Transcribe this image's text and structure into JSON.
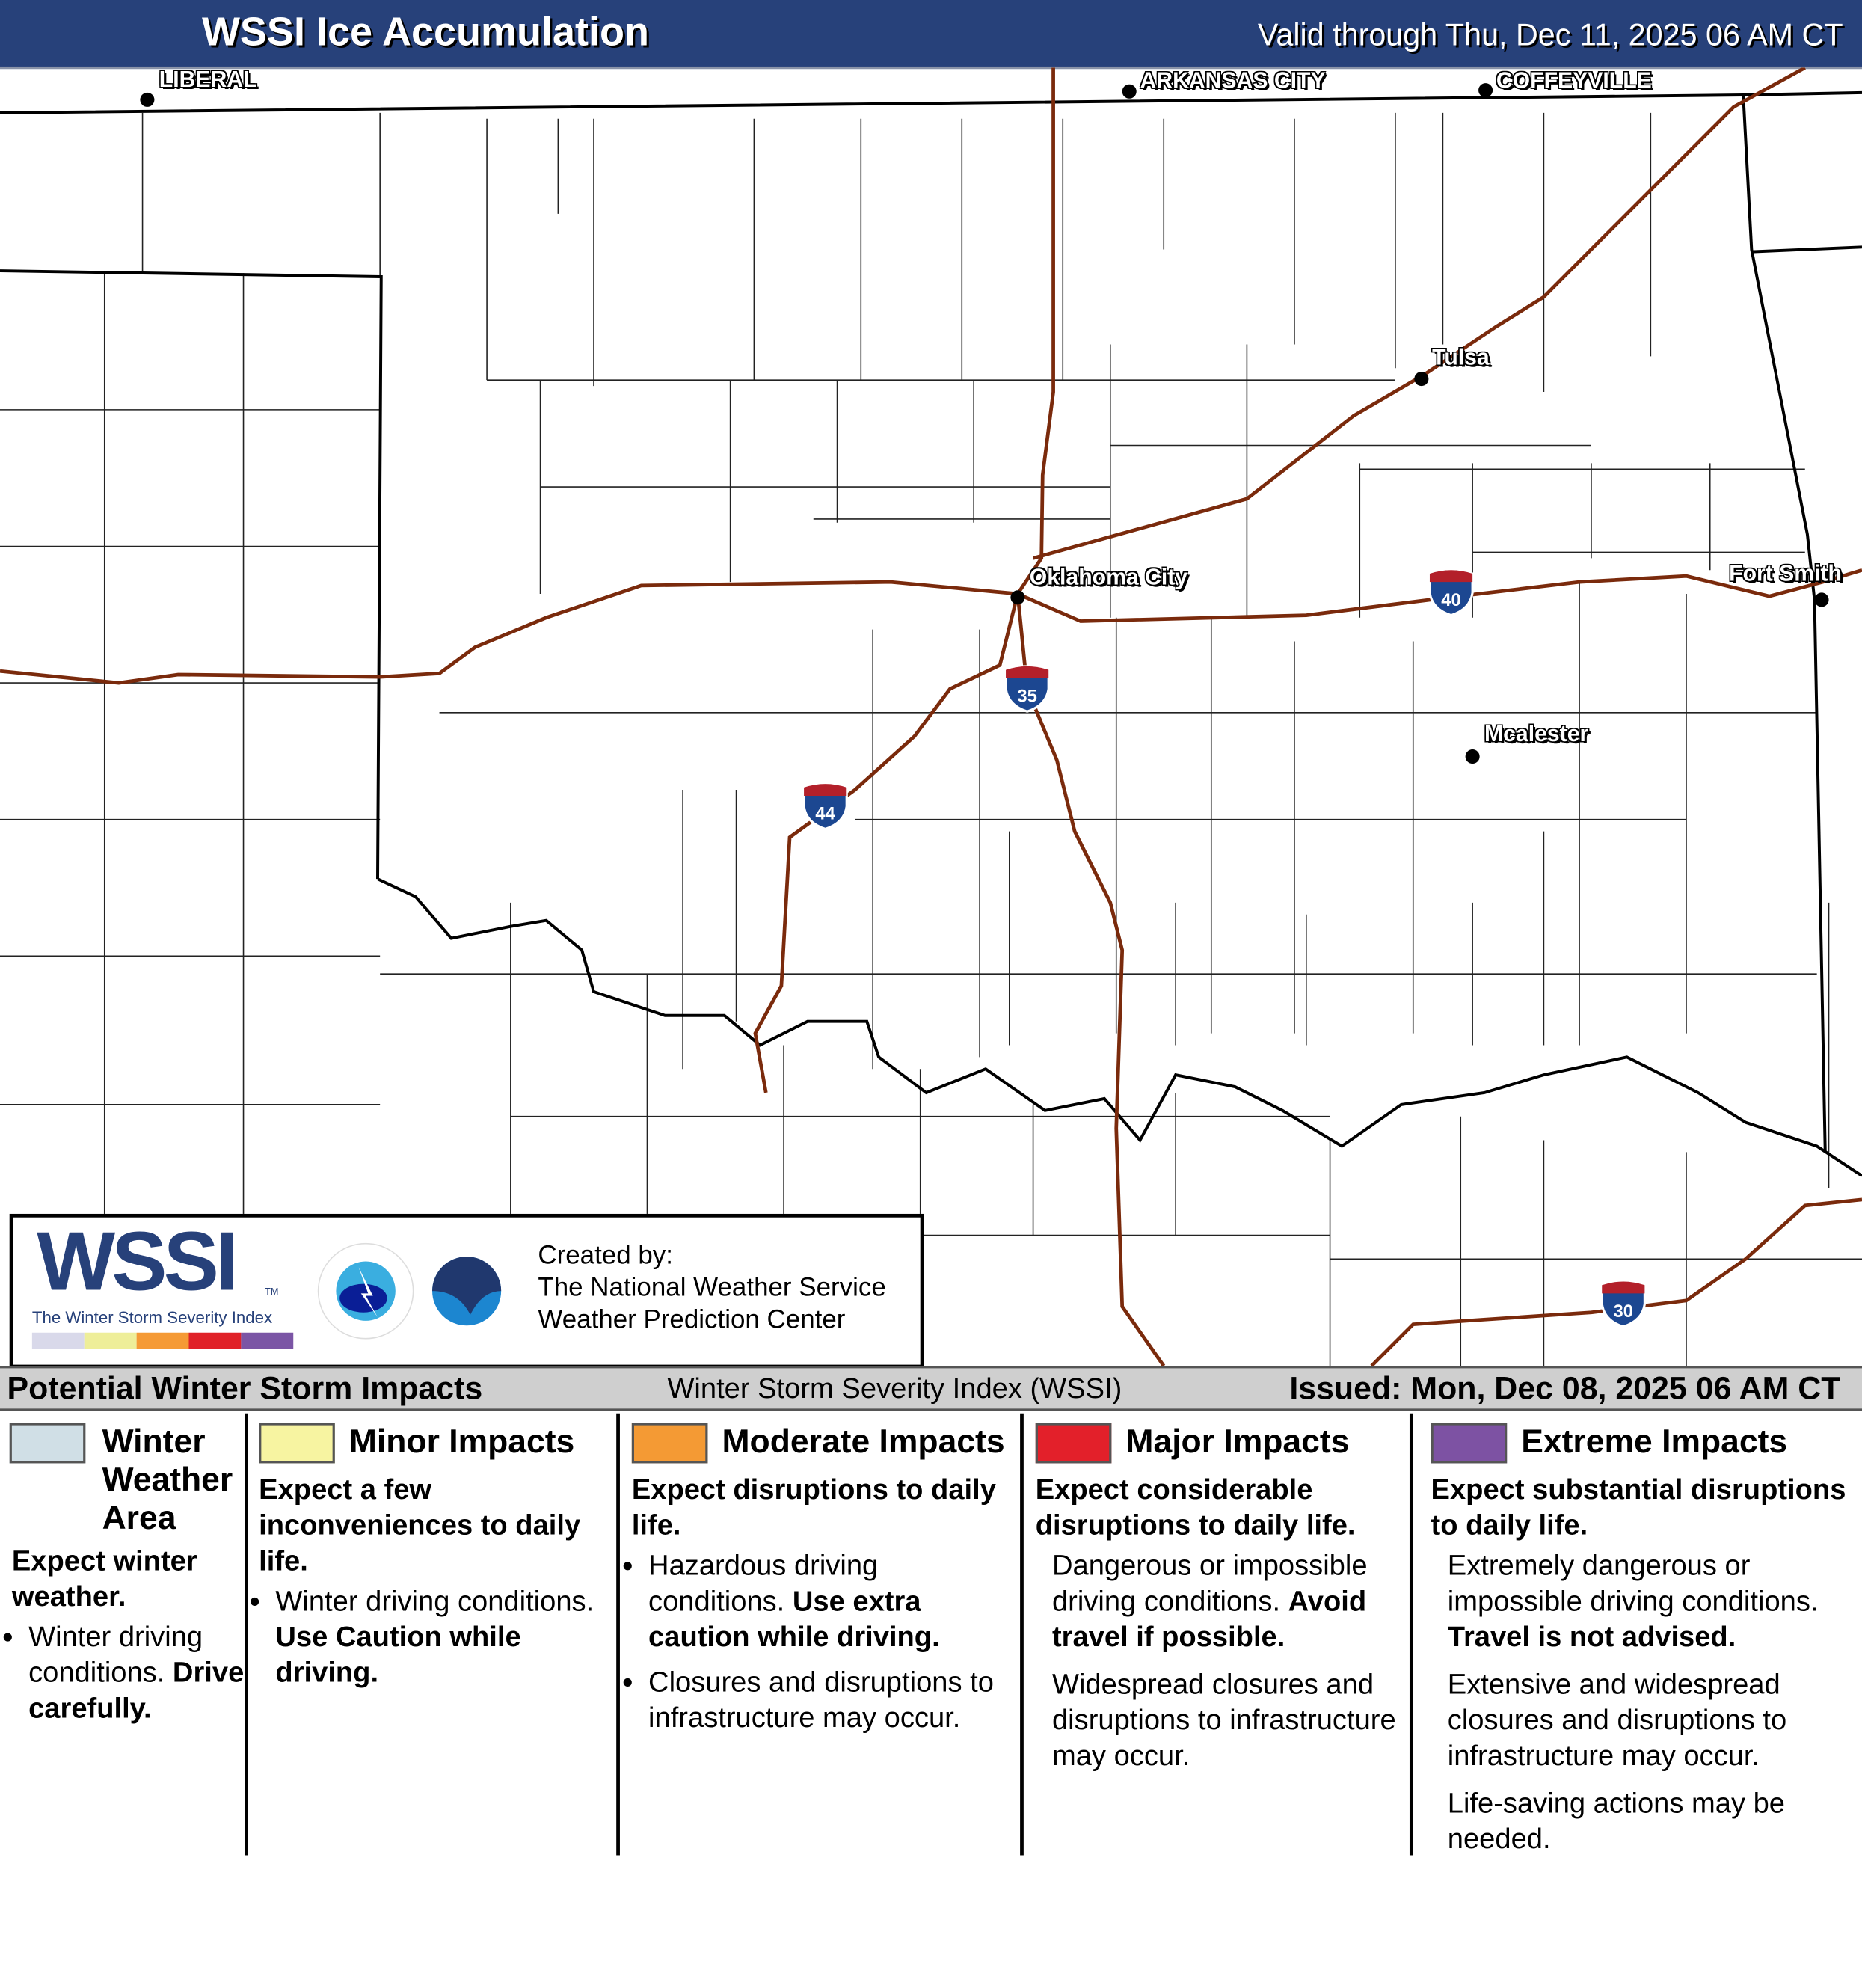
{
  "header": {
    "title": "WSSI Ice Accumulation",
    "valid": "Valid through Thu, Dec 11, 2025 06 AM CT"
  },
  "map": {
    "cities": [
      "LIBERAL",
      "ARKANSAS CITY",
      "COFFEYVILLE",
      "Tulsa",
      "Oklahoma City",
      "Fort Smith",
      "Mcalester"
    ],
    "interstates": [
      "40",
      "35",
      "44",
      "30"
    ],
    "colors": {
      "interstate": "#7a2a0c",
      "border": "#000000",
      "shield_blue": "#1c4791",
      "shield_red": "#b3202a"
    }
  },
  "logo": {
    "wssi": "WSSI",
    "tm": "TM",
    "tagline": "The Winter Storm Severity Index",
    "created": [
      "Created by:",
      "The National Weather Service",
      "Weather Prediction Center"
    ],
    "colors": [
      "#d9d9ea",
      "#eeee99",
      "#f59a35",
      "#e02128",
      "#7b55a5"
    ]
  },
  "legend_bar": {
    "left": "Potential Winter Storm Impacts",
    "center": "Winter Storm Severity Index (WSSI)",
    "right": "Issued: Mon, Dec 08, 2025 06 AM CT"
  },
  "categories": [
    {
      "name": "Winter Weather Area",
      "color": "#d0dfe6",
      "sub": "Expect winter weather.",
      "b1a": "Winter driving conditions.",
      "b1b": "Drive carefully."
    },
    {
      "name": "Minor Impacts",
      "color": "#f7f4a1",
      "sub": "Expect a few inconveniences to daily life.",
      "b1a": "Winter driving conditions.",
      "b1b": "Use Caution while driving."
    },
    {
      "name": "Moderate Impacts",
      "color": "#f49a34",
      "sub": "Expect disruptions to daily life.",
      "b1a": "Hazardous driving conditions.",
      "b1b": "Use extra caution while driving.",
      "b2": "Closures and disruptions to infrastructure may occur."
    },
    {
      "name": "Major Impacts",
      "color": "#e3202a",
      "sub": "Expect considerable disruptions to daily life.",
      "b1a": "Dangerous or impossible driving conditions.",
      "b1b": "Avoid travel if possible.",
      "b2": "Widespread closures and disruptions to infrastructure may occur."
    },
    {
      "name": "Extreme Impacts",
      "color": "#7d52a3",
      "sub": "Expect substantial disruptions to daily life.",
      "b1a": "Extremely dangerous or impossible driving conditions.",
      "b1b": "Travel is not advised.",
      "b2": "Extensive and widespread closures and disruptions to infrastructure may occur.",
      "b3": "Life-saving actions may be needed."
    }
  ]
}
